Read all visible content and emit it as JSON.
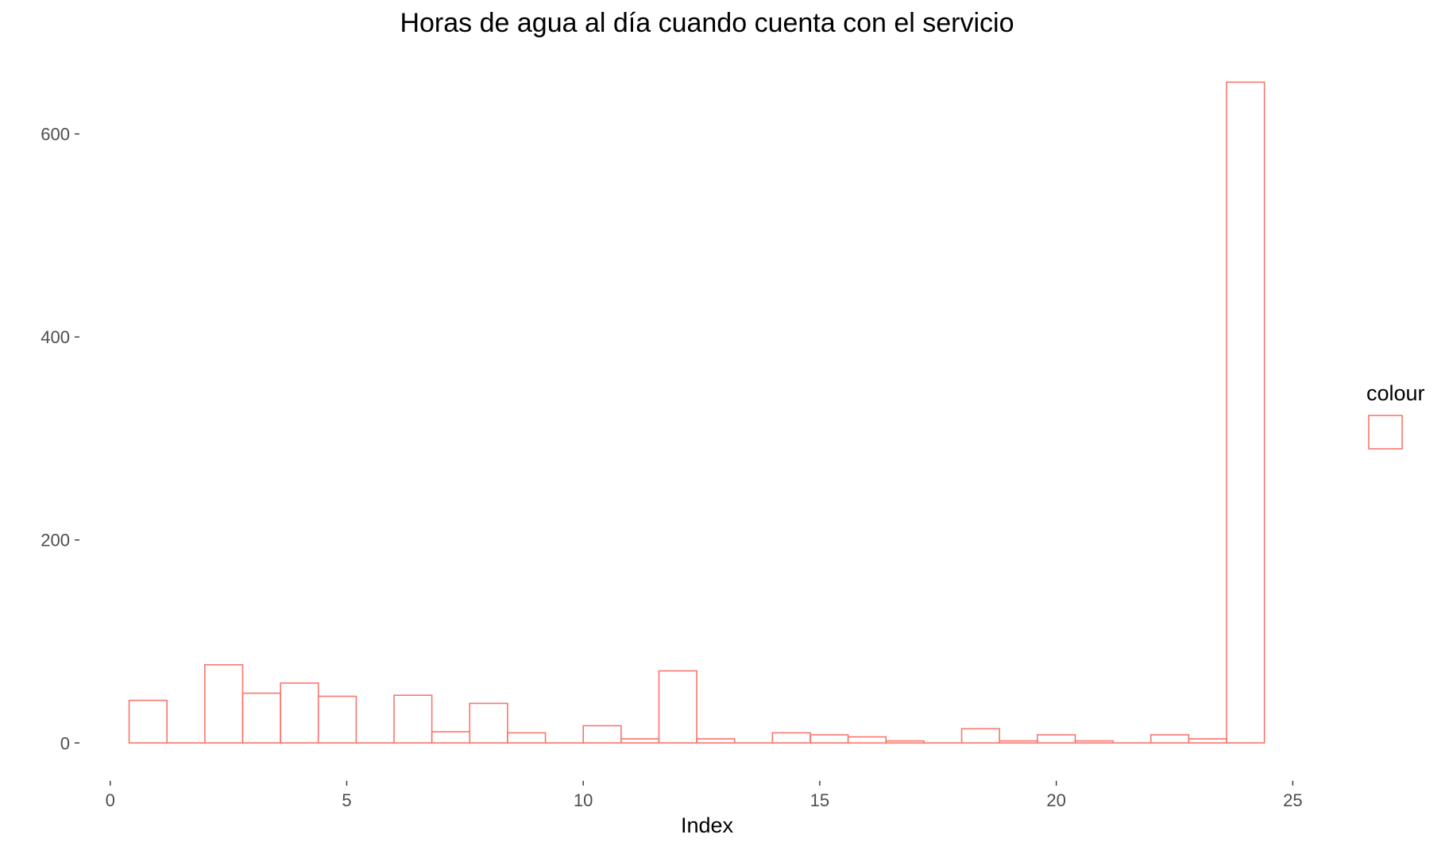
{
  "chart_data": {
    "type": "bar",
    "title": "Horas de agua al día cuando cuenta con el servicio",
    "xlabel": "Index",
    "ylabel": "",
    "xlim": [
      -0.6,
      25.8
    ],
    "ylim": [
      -35,
      685
    ],
    "x_ticks": [
      0,
      5,
      10,
      15,
      20,
      25
    ],
    "y_ticks": [
      0,
      200,
      400,
      600
    ],
    "grid": false,
    "legend": {
      "title": "colour",
      "placement": "right"
    },
    "bar_color": "#F8766D",
    "bin_width": 0.8,
    "series": [
      {
        "bins": [
          {
            "start": 0.4,
            "end": 1.2,
            "count": 42
          },
          {
            "start": 1.2,
            "end": 2.0,
            "count": 0
          },
          {
            "start": 2.0,
            "end": 2.8,
            "count": 77
          },
          {
            "start": 2.8,
            "end": 3.6,
            "count": 49
          },
          {
            "start": 3.6,
            "end": 4.4,
            "count": 59
          },
          {
            "start": 4.4,
            "end": 5.2,
            "count": 46
          },
          {
            "start": 5.2,
            "end": 6.0,
            "count": 0
          },
          {
            "start": 6.0,
            "end": 6.8,
            "count": 47
          },
          {
            "start": 6.8,
            "end": 7.6,
            "count": 11
          },
          {
            "start": 7.6,
            "end": 8.4,
            "count": 39
          },
          {
            "start": 8.4,
            "end": 9.2,
            "count": 10
          },
          {
            "start": 9.2,
            "end": 10.0,
            "count": 0
          },
          {
            "start": 10.0,
            "end": 10.8,
            "count": 17
          },
          {
            "start": 10.8,
            "end": 11.6,
            "count": 4
          },
          {
            "start": 11.6,
            "end": 12.4,
            "count": 71
          },
          {
            "start": 12.4,
            "end": 13.2,
            "count": 4
          },
          {
            "start": 13.2,
            "end": 14.0,
            "count": 0
          },
          {
            "start": 14.0,
            "end": 14.8,
            "count": 10
          },
          {
            "start": 14.8,
            "end": 15.6,
            "count": 8
          },
          {
            "start": 15.6,
            "end": 16.4,
            "count": 6
          },
          {
            "start": 16.4,
            "end": 17.2,
            "count": 2
          },
          {
            "start": 17.2,
            "end": 18.0,
            "count": 0
          },
          {
            "start": 18.0,
            "end": 18.8,
            "count": 14
          },
          {
            "start": 18.8,
            "end": 19.6,
            "count": 2
          },
          {
            "start": 19.6,
            "end": 20.4,
            "count": 8
          },
          {
            "start": 20.4,
            "end": 21.2,
            "count": 2
          },
          {
            "start": 21.2,
            "end": 22.0,
            "count": 0
          },
          {
            "start": 22.0,
            "end": 22.8,
            "count": 8
          },
          {
            "start": 22.8,
            "end": 23.6,
            "count": 4
          },
          {
            "start": 23.6,
            "end": 24.4,
            "count": 651
          }
        ]
      }
    ]
  }
}
